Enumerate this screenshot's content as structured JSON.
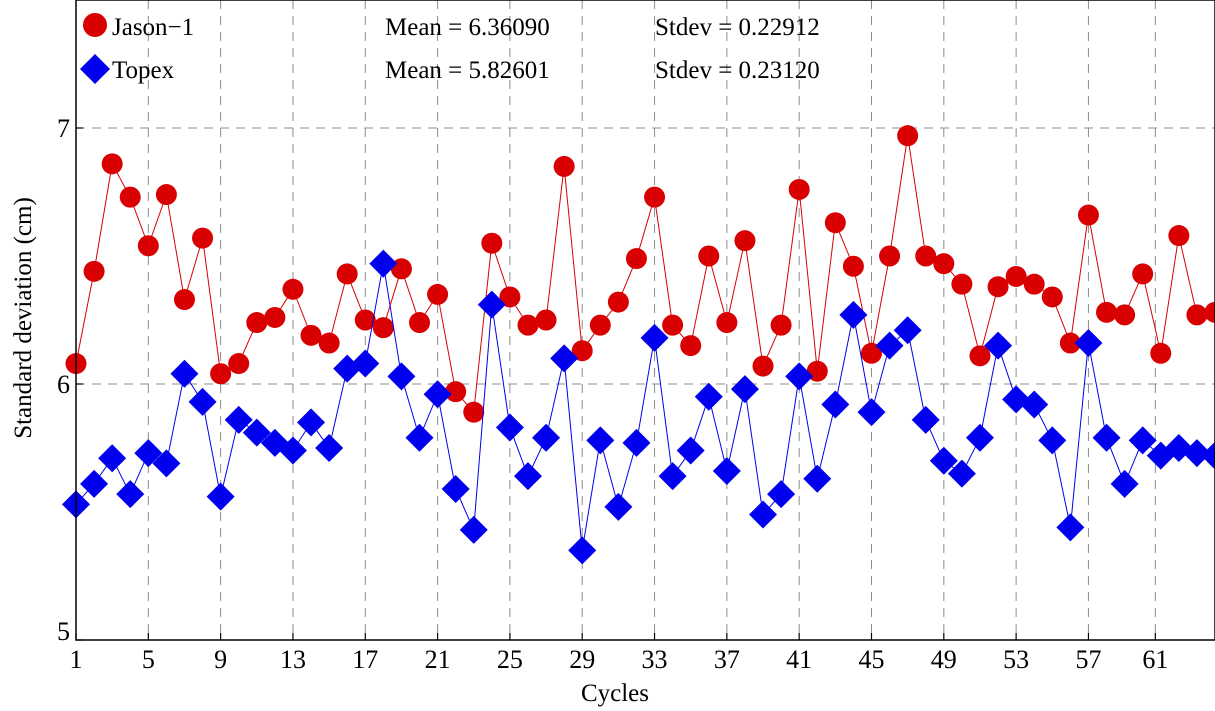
{
  "chart_data": {
    "type": "line",
    "xlabel": "Cycles",
    "ylabel": "Standard deviation (cm)",
    "xlim": [
      1,
      64
    ],
    "ylim": [
      5,
      7.5
    ],
    "x_ticks": [
      "1",
      "5",
      "9",
      "13",
      "17",
      "21",
      "25",
      "29",
      "33",
      "37",
      "41",
      "45",
      "49",
      "53",
      "57",
      "61"
    ],
    "x_tick_values": [
      1,
      5,
      9,
      13,
      17,
      21,
      25,
      29,
      33,
      37,
      41,
      45,
      49,
      53,
      57,
      60.7
    ],
    "y_ticks": [
      5,
      6,
      7
    ],
    "grid": true,
    "legend_position": "top-left",
    "x": [
      1,
      2,
      3,
      4,
      5,
      6,
      7,
      8,
      9,
      10,
      11,
      12,
      13,
      14,
      15,
      16,
      17,
      18,
      19,
      20,
      21,
      22,
      23,
      24,
      25,
      26,
      27,
      28,
      29,
      30,
      31,
      32,
      33,
      34,
      35,
      36,
      37,
      38,
      39,
      40,
      41,
      42,
      43,
      44,
      45,
      46,
      47,
      48,
      49,
      50,
      51,
      52,
      53,
      54,
      55,
      56,
      57,
      58,
      59,
      60,
      61,
      62,
      63,
      64
    ],
    "series": [
      {
        "name": "Jason−1",
        "color": "#d80000",
        "marker": "circle",
        "stats": "Mean = 6.36090",
        "stdev_text": "Stdev = 0.22912",
        "values": [
          6.08,
          6.44,
          6.86,
          6.73,
          6.54,
          6.74,
          6.33,
          6.57,
          6.04,
          6.08,
          6.24,
          6.26,
          6.37,
          6.19,
          6.16,
          6.43,
          6.25,
          6.22,
          6.45,
          6.24,
          6.35,
          5.97,
          5.89,
          6.55,
          6.34,
          6.23,
          6.25,
          6.85,
          6.13,
          6.23,
          6.32,
          6.49,
          6.73,
          6.23,
          6.15,
          6.5,
          6.24,
          6.56,
          6.07,
          6.23,
          6.76,
          6.05,
          6.63,
          6.46,
          6.12,
          6.5,
          6.97,
          6.5,
          6.47,
          6.39,
          6.11,
          6.38,
          6.42,
          6.39,
          6.34,
          6.16,
          6.66,
          6.28,
          6.27,
          6.43,
          6.12,
          6.58,
          6.27,
          6.28
        ]
      },
      {
        "name": "Topex",
        "color": "#0000ee",
        "marker": "diamond",
        "stats": "Mean = 5.82601",
        "stdev_text": "Stdev = 0.23120",
        "values": [
          5.53,
          5.61,
          5.71,
          5.57,
          5.73,
          5.69,
          6.04,
          5.93,
          5.56,
          5.86,
          5.81,
          5.77,
          5.74,
          5.85,
          5.75,
          6.06,
          6.08,
          6.47,
          6.03,
          5.79,
          5.96,
          5.59,
          5.43,
          6.31,
          5.83,
          5.64,
          5.79,
          6.1,
          5.35,
          5.78,
          5.52,
          5.77,
          6.18,
          5.64,
          5.74,
          5.95,
          5.66,
          5.98,
          5.49,
          5.57,
          6.03,
          5.63,
          5.92,
          6.27,
          5.89,
          6.15,
          6.21,
          5.86,
          5.7,
          5.65,
          5.79,
          6.15,
          5.94,
          5.92,
          5.78,
          5.44,
          6.16,
          5.79,
          5.61,
          5.78,
          5.72,
          5.75,
          5.73,
          5.72
        ]
      }
    ]
  }
}
